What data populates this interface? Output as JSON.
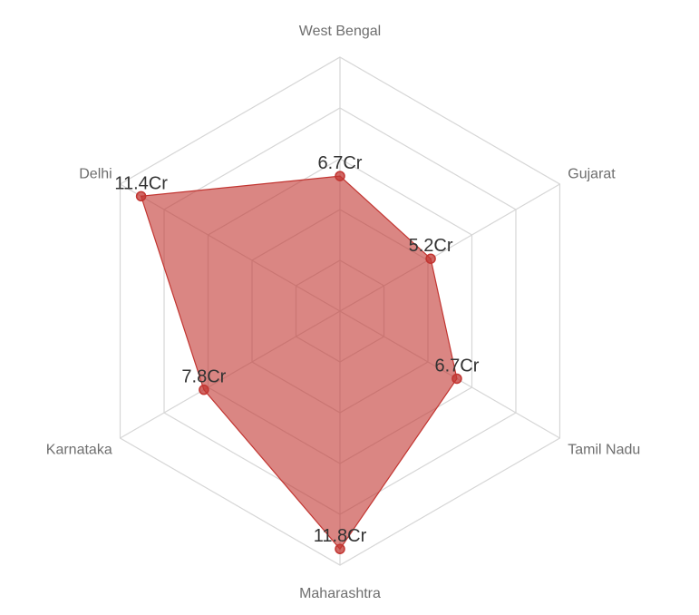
{
  "chart_data": {
    "type": "radar",
    "categories": [
      "West Bengal",
      "Gujarat",
      "Tamil Nadu",
      "Maharashtra",
      "Karnataka",
      "Delhi"
    ],
    "series": [
      {
        "values": [
          6.7,
          5.2,
          6.7,
          11.8,
          7.8,
          11.4
        ],
        "labels": [
          "6.7Cr",
          "5.2Cr",
          "6.7Cr",
          "11.8Cr",
          "7.8Cr",
          "11.4Cr"
        ],
        "color": "#c23531"
      }
    ],
    "rmax": 12.6,
    "grid_levels": 5,
    "colors": {
      "fill": "#c23531",
      "grid": "#d6d6d6",
      "axis_label": "#6e6e6e",
      "data_label": "#333333"
    }
  }
}
